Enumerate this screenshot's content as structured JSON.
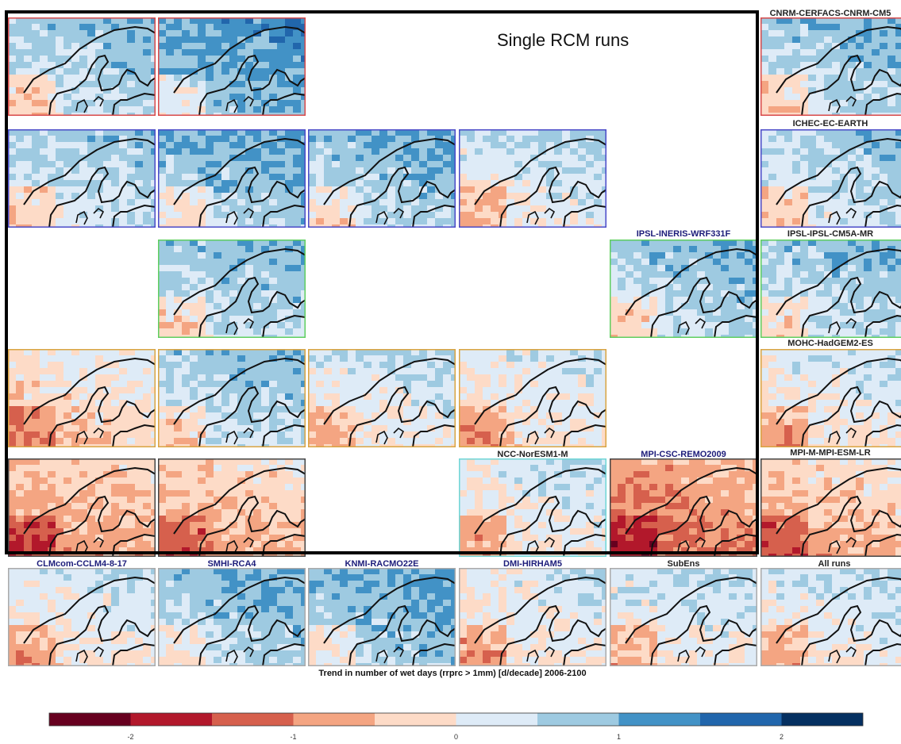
{
  "chart_data": {
    "type": "heatmap",
    "title": "Single RCM runs",
    "xlabel": "Trend in number of wet days (rrprc > 1mm) [d/decade] 2006-2100",
    "rows": [
      "CNRM-CERFACS-CNRM-CM5",
      "ICHEC-EC-EARTH",
      "IPSL-IPSL-CM5A-MR",
      "MOHC-HadGEM2-ES",
      "MPI-M-MPI-ESM-LR"
    ],
    "columns": [
      "CLMcom-CCLM4-8-17",
      "SMHI-RCA4",
      "KNMI-RACMO22E",
      "DMI-HIRHAM5"
    ],
    "extra_panel_labels": [
      "IPSL-INERIS-WRF331F",
      "NCC-NorESM1-M",
      "MPI-CSC-REMO2009",
      "SubEns",
      "All runs"
    ],
    "colorbar": {
      "range": [
        -2.5,
        2.5
      ],
      "ticks": [
        -2,
        -1,
        0,
        1,
        2
      ],
      "tick_labels": [
        "-2",
        "-1",
        "0",
        "1",
        "2"
      ],
      "bins": [
        -2.5,
        -2,
        -1.5,
        -1,
        -0.5,
        0,
        0.5,
        1,
        1.5,
        2,
        2.5
      ],
      "colors": [
        "#67001f",
        "#b2182b",
        "#d6604d",
        "#f4a582",
        "#fddbc7",
        "#deebf7",
        "#9ecae1",
        "#4292c6",
        "#2166ac",
        "#053061"
      ]
    },
    "panels": [
      {
        "row": 0,
        "col": 0,
        "border": "#d94a4a",
        "mean": 0.55
      },
      {
        "row": 0,
        "col": 1,
        "border": "#d94a4a",
        "mean": 1.0
      },
      {
        "row": 0,
        "col": 5,
        "border": "#d94a4a",
        "mean": 0.6
      },
      {
        "row": 1,
        "col": 0,
        "border": "#4a4ac8",
        "mean": 0.45
      },
      {
        "row": 1,
        "col": 1,
        "border": "#4a4ac8",
        "mean": 0.75
      },
      {
        "row": 1,
        "col": 2,
        "border": "#4a4ac8",
        "mean": 0.65
      },
      {
        "row": 1,
        "col": 3,
        "border": "#4a4ac8",
        "mean": 0.25
      },
      {
        "row": 1,
        "col": 5,
        "border": "#4a4ac8",
        "mean": 0.45
      },
      {
        "row": 2,
        "col": 1,
        "border": "#5fcf5f",
        "mean": 0.6
      },
      {
        "row": 2,
        "col": 4,
        "border": "#5fcf5f",
        "mean": 0.6
      },
      {
        "row": 2,
        "col": 5,
        "border": "#5fcf5f",
        "mean": 0.6
      },
      {
        "row": 3,
        "col": 0,
        "border": "#d9a441",
        "mean": -0.2
      },
      {
        "row": 3,
        "col": 1,
        "border": "#d9a441",
        "mean": 0.55
      },
      {
        "row": 3,
        "col": 2,
        "border": "#d9a441",
        "mean": 0.2
      },
      {
        "row": 3,
        "col": 3,
        "border": "#d9a441",
        "mean": 0.05
      },
      {
        "row": 3,
        "col": 5,
        "border": "#d9a441",
        "mean": 0.1
      },
      {
        "row": 4,
        "col": 0,
        "border": "#444444",
        "mean": -0.6
      },
      {
        "row": 4,
        "col": 1,
        "border": "#444444",
        "mean": -0.5
      },
      {
        "row": 4,
        "col": 3,
        "border": "#6fd6d6",
        "mean": 0.1
      },
      {
        "row": 4,
        "col": 4,
        "border": "#444444",
        "mean": -0.9
      },
      {
        "row": 4,
        "col": 5,
        "border": "#444444",
        "mean": -0.45
      },
      {
        "row": 5,
        "col": 0,
        "border": "#aaaaaa",
        "mean": 0.1
      },
      {
        "row": 5,
        "col": 1,
        "border": "#aaaaaa",
        "mean": 0.7
      },
      {
        "row": 5,
        "col": 2,
        "border": "#aaaaaa",
        "mean": 0.8
      },
      {
        "row": 5,
        "col": 3,
        "border": "#aaaaaa",
        "mean": 0.05
      },
      {
        "row": 5,
        "col": 4,
        "border": "#aaaaaa",
        "mean": 0.2
      },
      {
        "row": 5,
        "col": 5,
        "border": "#aaaaaa",
        "mean": 0.2
      }
    ]
  }
}
